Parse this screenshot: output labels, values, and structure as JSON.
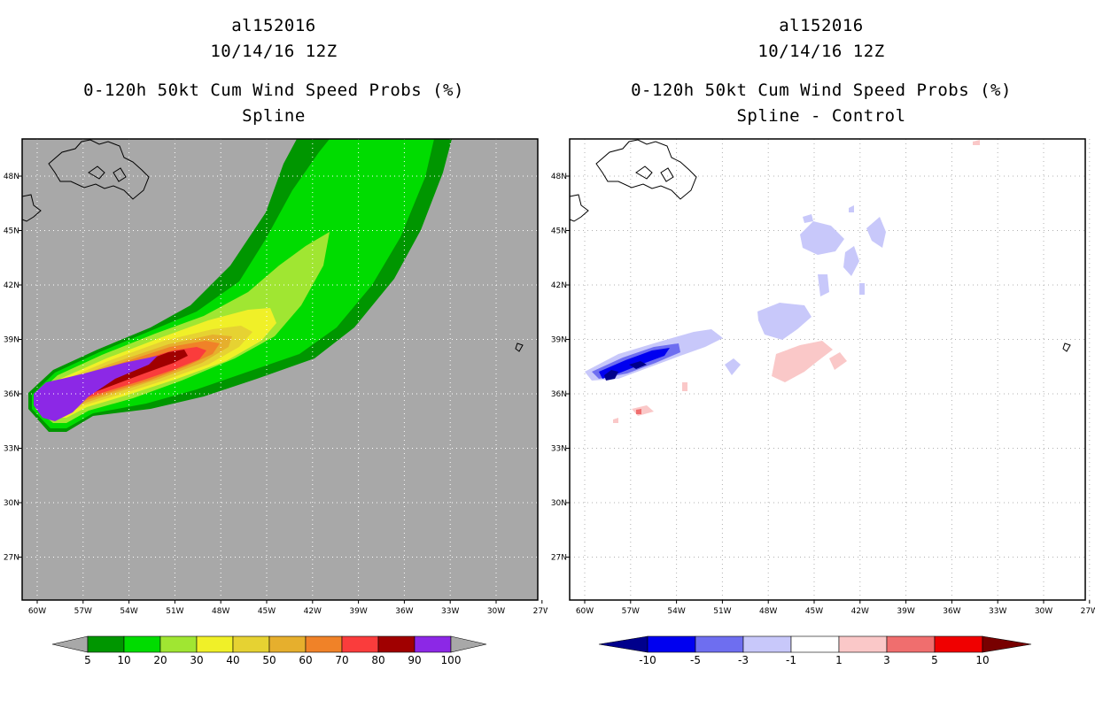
{
  "panels": [
    {
      "id": "left",
      "storm_id": "al152016",
      "date": "10/14/16 12Z",
      "product": "0-120h 50kt Cum Wind Speed Probs (%)",
      "subtitle": "Spline",
      "background": "#a8a8a8"
    },
    {
      "id": "right",
      "storm_id": "al152016",
      "date": "10/14/16 12Z",
      "product": "0-120h 50kt Cum Wind Speed Probs (%)",
      "subtitle": "Spline - Control",
      "background": "#ffffff"
    }
  ],
  "chart_data": [
    {
      "type": "heatmap",
      "title": "0-120h 50kt Cum Wind Speed Probs (%) Spline",
      "x_ticks": [
        "60W",
        "57W",
        "54W",
        "51W",
        "48W",
        "45W",
        "42W",
        "39W",
        "36W",
        "33W",
        "30W",
        "27W"
      ],
      "y_ticks": [
        "48N",
        "45N",
        "42N",
        "39N",
        "36N",
        "33N",
        "30N",
        "27N"
      ],
      "xlim": [
        -60,
        -27
      ],
      "ylim": [
        25,
        50
      ],
      "grid": true,
      "colorbar": {
        "labels": [
          "5",
          "10",
          "20",
          "30",
          "40",
          "50",
          "60",
          "70",
          "80",
          "90",
          "100"
        ],
        "colors": [
          "#009600",
          "#00dc00",
          "#a0e632",
          "#f0f028",
          "#e6d232",
          "#e6af2d",
          "#f08228",
          "#fa3c3c",
          "#a00000",
          "#8c28e6"
        ]
      }
    },
    {
      "type": "heatmap",
      "title": "0-120h 50kt Cum Wind Speed Probs (%) Spline - Control",
      "x_ticks": [
        "60W",
        "57W",
        "54W",
        "51W",
        "48W",
        "45W",
        "42W",
        "39W",
        "36W",
        "33W",
        "30W",
        "27W"
      ],
      "y_ticks": [
        "48N",
        "45N",
        "42N",
        "39N",
        "36N",
        "33N",
        "30N",
        "27N"
      ],
      "xlim": [
        -60,
        -27
      ],
      "ylim": [
        25,
        50
      ],
      "grid": true,
      "colorbar": {
        "labels": [
          "-10",
          "-5",
          "-3",
          "-1",
          "1",
          "3",
          "5",
          "10"
        ],
        "colors": [
          "#00008c",
          "#0000f0",
          "#6e6ef0",
          "#c8c8fa",
          "#ffffff",
          "#fac8c8",
          "#f06e6e",
          "#f00000",
          "#780000"
        ]
      }
    }
  ]
}
